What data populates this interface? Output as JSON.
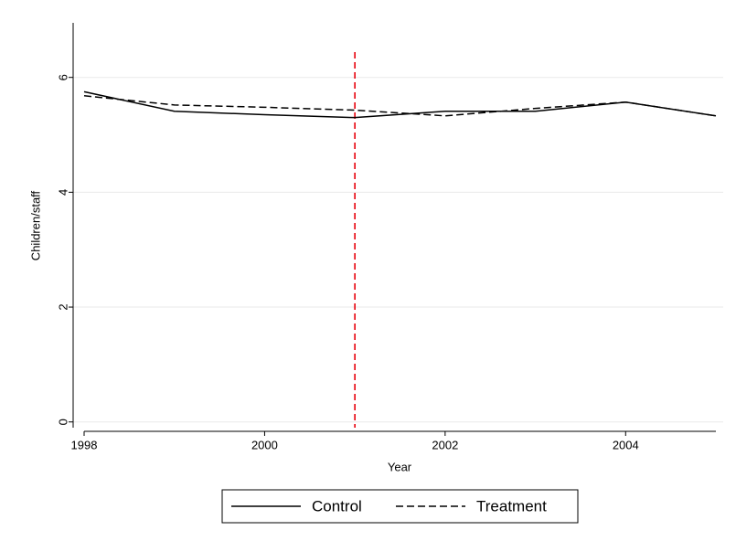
{
  "chart_data": {
    "type": "line",
    "x": [
      1998,
      1999,
      2000,
      2001,
      2002,
      2003,
      2004,
      2005
    ],
    "series": [
      {
        "name": "Control",
        "color": "#000000",
        "dash": false,
        "values": [
          5.75,
          5.41,
          5.35,
          5.3,
          5.41,
          5.41,
          5.57,
          5.33
        ]
      },
      {
        "name": "Treatment",
        "color": "#000000",
        "dash": true,
        "values": [
          5.68,
          5.52,
          5.48,
          5.43,
          5.33,
          5.46,
          5.57,
          5.33
        ]
      }
    ],
    "xlabel": "Year",
    "ylabel": "Children/staff",
    "xlim": [
      1998,
      2005
    ],
    "xticks": [
      1998,
      2000,
      2002,
      2004
    ],
    "ylim": [
      -0.1,
      6.95
    ],
    "yticks": [
      0,
      2,
      4,
      6
    ],
    "grid": true,
    "vline": {
      "x": 2001,
      "color": "#e8000b"
    },
    "legend": "bottom"
  }
}
